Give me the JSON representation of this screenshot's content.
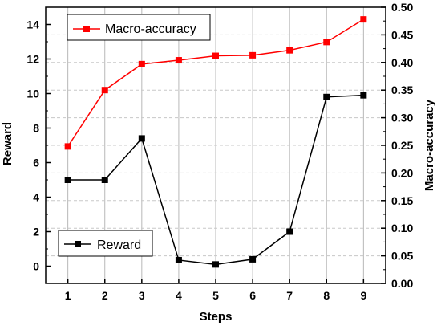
{
  "chart_data": {
    "type": "line",
    "x": [
      1,
      2,
      3,
      4,
      5,
      6,
      7,
      8,
      9
    ],
    "xlabel": "Steps",
    "ylabel_left": "Reward",
    "ylabel_right": "Macro-accuracy",
    "ylim_left": [
      -1.0,
      15.0
    ],
    "ylim_right": [
      0.0,
      0.5
    ],
    "xlim": [
      0.4,
      9.6
    ],
    "x_ticks": [
      "1",
      "2",
      "3",
      "4",
      "5",
      "6",
      "7",
      "8",
      "9"
    ],
    "y_left_ticks": [
      "0",
      "2",
      "4",
      "6",
      "8",
      "10",
      "12",
      "14"
    ],
    "y_right_ticks": [
      "0.00",
      "0.05",
      "0.10",
      "0.15",
      "0.20",
      "0.25",
      "0.30",
      "0.35",
      "0.40",
      "0.45",
      "0.50"
    ],
    "grid": "on",
    "series": [
      {
        "name": "Macro-accuracy",
        "axis": "right",
        "color": "#ff0000",
        "values": [
          0.248,
          0.35,
          0.397,
          0.404,
          0.412,
          0.413,
          0.422,
          0.437,
          0.478
        ],
        "legend_position": "top-left"
      },
      {
        "name": "Reward",
        "axis": "left",
        "color": "#000000",
        "values": [
          5.0,
          5.0,
          7.4,
          0.35,
          0.1,
          0.4,
          2.0,
          9.8,
          9.9
        ],
        "legend_position": "bottom-left"
      }
    ]
  }
}
